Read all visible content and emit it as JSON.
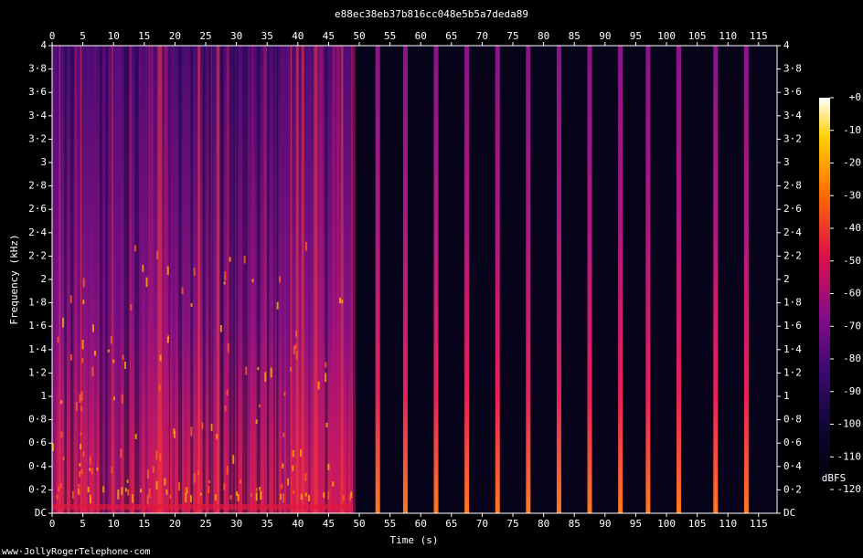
{
  "chart_data": {
    "type": "spectrogram",
    "title": "e88ec38eb37b816cc048e5b5a7deda89",
    "xlabel": "Time (s)",
    "ylabel": "Frequency (kHz)",
    "xlim": [
      0,
      118
    ],
    "xticks": [
      0,
      5,
      10,
      15,
      20,
      25,
      30,
      35,
      40,
      45,
      50,
      55,
      60,
      65,
      70,
      75,
      80,
      85,
      90,
      95,
      100,
      105,
      110,
      115
    ],
    "ylim": [
      0,
      4
    ],
    "yticks": [
      {
        "value": 0,
        "label": "DC"
      },
      {
        "value": 0.2,
        "label": "0·2"
      },
      {
        "value": 0.4,
        "label": "0·4"
      },
      {
        "value": 0.6,
        "label": "0·6"
      },
      {
        "value": 0.8,
        "label": "0·8"
      },
      1,
      {
        "value": 1.2,
        "label": "1·2"
      },
      {
        "value": 1.4,
        "label": "1·4"
      },
      {
        "value": 1.6,
        "label": "1·6"
      },
      {
        "value": 1.8,
        "label": "1·8"
      },
      2,
      {
        "value": 2.2,
        "label": "2·2"
      },
      {
        "value": 2.4,
        "label": "2·4"
      },
      {
        "value": 2.6,
        "label": "2·6"
      },
      {
        "value": 2.8,
        "label": "2·8"
      },
      3,
      {
        "value": 3.2,
        "label": "3·2"
      },
      {
        "value": 3.4,
        "label": "3·4"
      },
      {
        "value": 3.6,
        "label": "3·6"
      },
      {
        "value": 3.8,
        "label": "3·8"
      },
      4
    ],
    "x": [
      53,
      57.5,
      62.5,
      67.5,
      72.5,
      77.5,
      82.5,
      87.5,
      92.5,
      97,
      102,
      108,
      113
    ],
    "clim": [
      -120,
      0
    ],
    "cticks": [
      {
        "value": 0,
        "label": "+0"
      },
      -10,
      -20,
      -30,
      -40,
      -50,
      -60,
      -70,
      -80,
      -90,
      -100,
      -110,
      -120
    ],
    "clabel": "dBFS"
  },
  "footer": "www·JollyRogerTelephone·com"
}
